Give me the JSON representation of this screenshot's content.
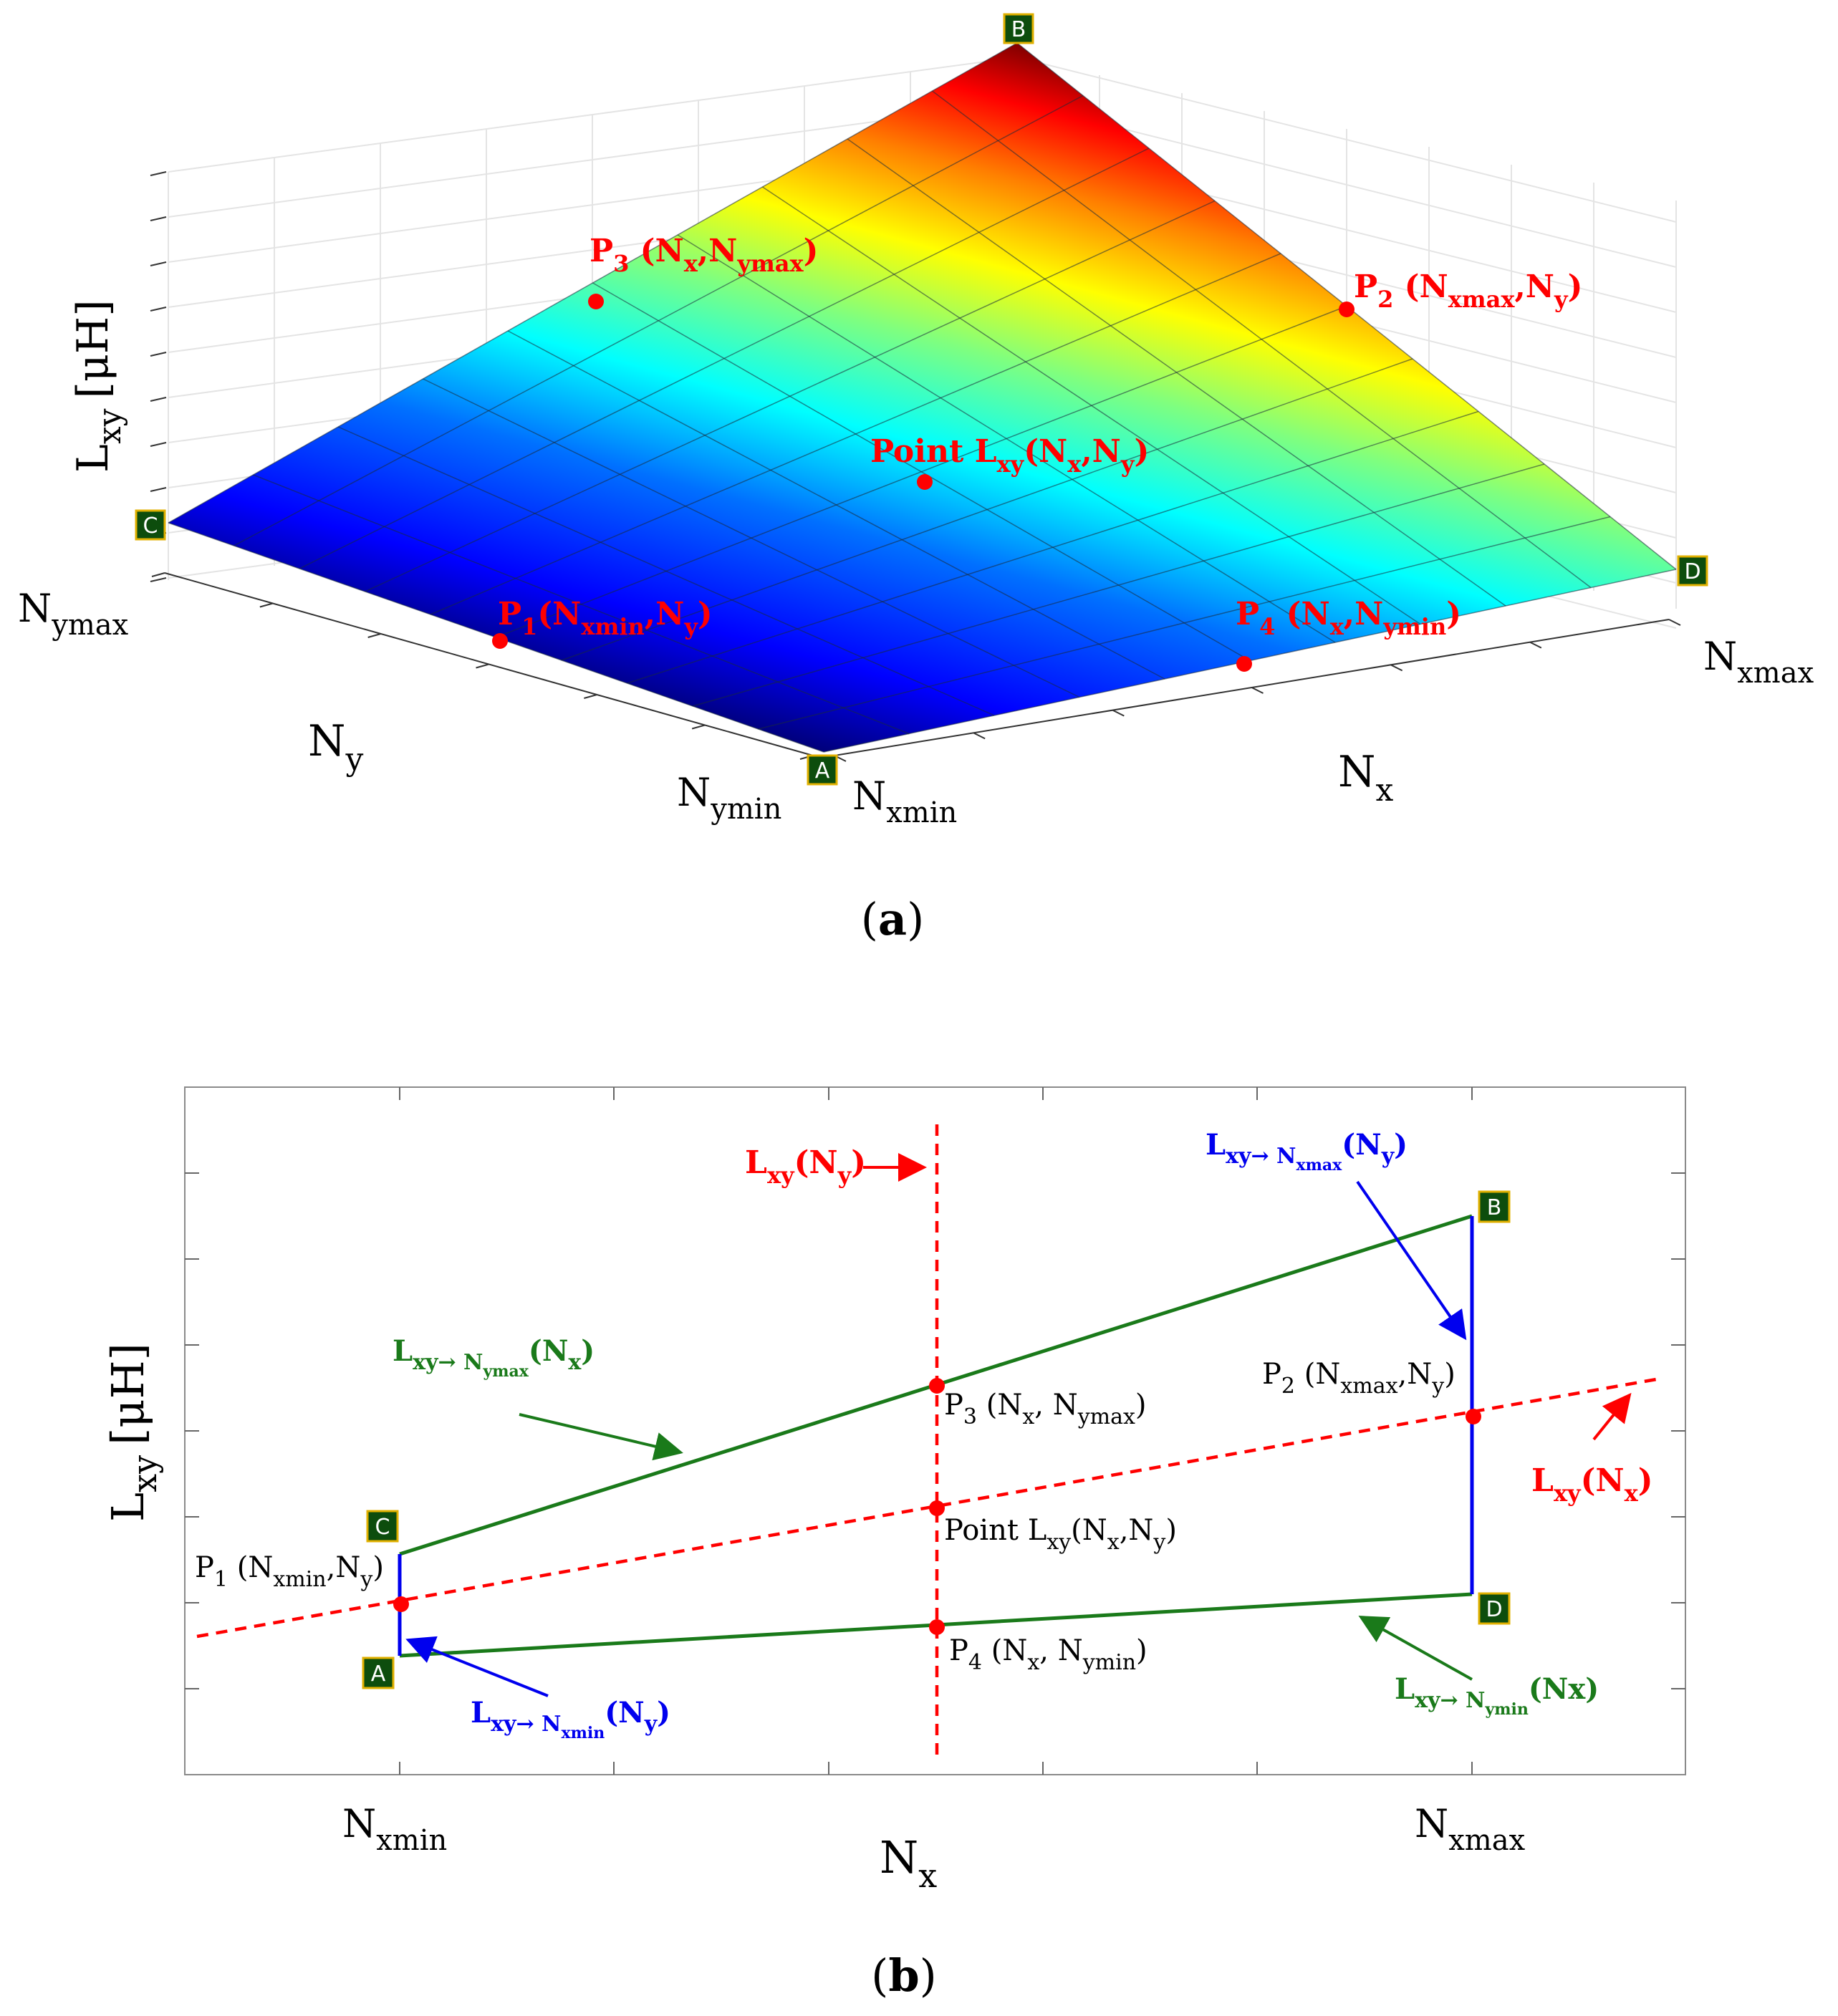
{
  "panel_a": {
    "caption_prefix": "(",
    "caption_letter": "a",
    "caption_suffix": ")",
    "z_axis": {
      "main": "L",
      "sub": "xy",
      "unit": "[μH]"
    },
    "y_axis": {
      "main": "N",
      "sub": "y"
    },
    "x_axis": {
      "main": "N",
      "sub": "x"
    },
    "tick_ymax": {
      "main": "N",
      "sub": "ymax"
    },
    "tick_ymin": {
      "main": "N",
      "sub": "ymin"
    },
    "tick_xmin": {
      "main": "N",
      "sub": "xmin"
    },
    "tick_xmax": {
      "main": "N",
      "sub": "xmax"
    },
    "corners": {
      "A": "A",
      "B": "B",
      "C": "C",
      "D": "D"
    },
    "points": {
      "p1": {
        "p": "P",
        "idx": "1",
        "open": "(N",
        "s1": "xmin",
        "mid": ",N",
        "s2": "y",
        "close": ")"
      },
      "p2": {
        "p": "P",
        "idx": "2",
        "open": " (N",
        "s1": "xmax",
        "mid": ",N",
        "s2": "y",
        "close": ")"
      },
      "p3": {
        "p": "P",
        "idx": "3",
        "open": " (N",
        "s1": "x",
        "mid": ",N",
        "s2": "ymax",
        "close": ")"
      },
      "p4": {
        "p": "P",
        "idx": "4",
        "open": " (N",
        "s1": "x",
        "mid": ",N",
        "s2": "ymin",
        "close": ")"
      },
      "center": {
        "p": "Point L",
        "idx": "xy",
        "open": "(N",
        "s1": "x",
        "mid": ",N",
        "s2": "y",
        "close": ")"
      }
    },
    "colors": {
      "marker": "#ff0000",
      "corner_bg": "#0d4d0d",
      "corner_border": "#e0b000"
    }
  },
  "panel_b": {
    "caption_prefix": "(",
    "caption_letter": "b",
    "caption_suffix": ")",
    "y_axis": {
      "main": "L",
      "sub": "xy",
      "unit": "[μH]"
    },
    "x_axis": {
      "main": "N",
      "sub": "x"
    },
    "tick_xmin": {
      "main": "N",
      "sub": "xmin"
    },
    "tick_xmax": {
      "main": "N",
      "sub": "xmax"
    },
    "corners": {
      "A": "A",
      "B": "B",
      "C": "C",
      "D": "D"
    },
    "labels": {
      "lxy_ny": {
        "main": "L",
        "sub": "xy",
        "rest": "(N",
        "sub2": "y",
        "close": ")"
      },
      "lxy_nx": {
        "main": "L",
        "sub": "xy",
        "rest": "(N",
        "sub2": "x",
        "close": ")"
      },
      "lxy_nxmax": {
        "main": "L",
        "sub": "xy→ N",
        "subsub": "xmax",
        "rest": "(N",
        "sub2": "y",
        "close": ")"
      },
      "lxy_nymax": {
        "main": "L",
        "sub": "xy→ N",
        "subsub": "ymax",
        "rest": "(N",
        "sub2": "x",
        "close": ")"
      },
      "lxy_nxmin": {
        "main": "L",
        "sub": "xy→ N",
        "subsub": "xmin",
        "rest": "(N",
        "sub2": "y",
        "close": ")"
      },
      "lxy_nymin": {
        "main": "L",
        "sub": "xy→ N",
        "subsub": "ymin",
        "rest": "(Nx)"
      },
      "p1": {
        "p": "P",
        "idx": "1",
        "open": " (N",
        "s1": "xmin",
        "mid": ",N",
        "s2": "y",
        "close": ")"
      },
      "p2": {
        "p": "P",
        "idx": "2",
        "open": " (N",
        "s1": "xmax",
        "mid": ",N",
        "s2": "y",
        "close": ")"
      },
      "p3": {
        "p": "P",
        "idx": "3",
        "open": " (N",
        "s1": "x",
        "mid": ", N",
        "s2": "ymax",
        "close": ")"
      },
      "p4": {
        "p": "P",
        "idx": "4",
        "open": " (N",
        "s1": "x",
        "mid": ", N",
        "s2": "ymin",
        "close": ")"
      },
      "center": {
        "p": "Point L",
        "idx": "xy",
        "open": "(N",
        "s1": "x",
        "mid": ",N",
        "s2": "y",
        "close": ")"
      }
    },
    "colors": {
      "red": "#ff0000",
      "green": "#1a7a1a",
      "blue": "#0000ee",
      "grid": "#888888"
    }
  }
}
